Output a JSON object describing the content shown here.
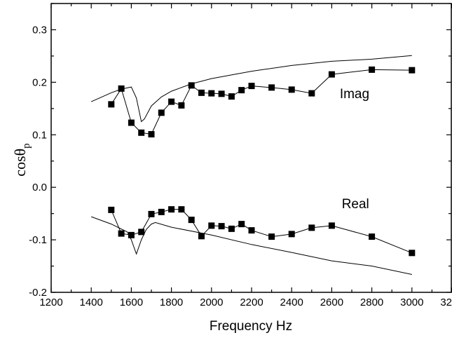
{
  "chart_data": {
    "type": "line",
    "title": "",
    "xlabel": "Frequency Hz",
    "ylabel": {
      "main": "cosθ",
      "sub": "p"
    },
    "xlim": [
      1200,
      3200
    ],
    "ylim": [
      -0.2,
      0.35
    ],
    "xticks": [
      1200,
      1400,
      1600,
      1800,
      2000,
      2200,
      2400,
      2600,
      2800,
      3000,
      3200
    ],
    "yticks": [
      -0.2,
      -0.1,
      0.0,
      0.1,
      0.2,
      0.3
    ],
    "ytick_labels": [
      "-0.2",
      "-0.1",
      "0.0",
      "0.1",
      "0.2",
      "0.3"
    ],
    "grid": false,
    "annotations": [
      {
        "text": "Imag",
        "x": 2640,
        "y": 0.17
      },
      {
        "text": "Real",
        "x": 2650,
        "y": -0.04
      }
    ],
    "series": [
      {
        "marker": "square",
        "x": [
          1500,
          1550,
          1600,
          1650,
          1700,
          1750,
          1800,
          1850,
          1900,
          1950,
          2000,
          2050,
          2100,
          2150,
          2200,
          2300,
          2400,
          2500,
          2600,
          2800,
          3000
        ],
        "y": [
          0.158,
          0.188,
          0.123,
          0.104,
          0.101,
          0.142,
          0.163,
          0.156,
          0.194,
          0.18,
          0.179,
          0.178,
          0.173,
          0.185,
          0.193,
          0.19,
          0.186,
          0.179,
          0.215,
          0.224,
          0.223
        ]
      },
      {
        "marker": "none",
        "x": [
          1400,
          1500,
          1550,
          1600,
          1625,
          1650,
          1665,
          1700,
          1750,
          1800,
          1900,
          2000,
          2200,
          2400,
          2600,
          2800,
          3000
        ],
        "y": [
          0.163,
          0.18,
          0.187,
          0.191,
          0.17,
          0.125,
          0.13,
          0.155,
          0.172,
          0.183,
          0.197,
          0.207,
          0.221,
          0.232,
          0.24,
          0.244,
          0.251
        ]
      },
      {
        "marker": "square",
        "x": [
          1500,
          1550,
          1600,
          1650,
          1700,
          1750,
          1800,
          1850,
          1900,
          1950,
          2000,
          2050,
          2100,
          2150,
          2200,
          2300,
          2400,
          2500,
          2600,
          2800,
          3000
        ],
        "y": [
          -0.043,
          -0.088,
          -0.091,
          -0.085,
          -0.051,
          -0.047,
          -0.042,
          -0.042,
          -0.062,
          -0.093,
          -0.073,
          -0.074,
          -0.079,
          -0.07,
          -0.082,
          -0.094,
          -0.089,
          -0.077,
          -0.073,
          -0.094,
          -0.125
        ]
      },
      {
        "marker": "none",
        "x": [
          1400,
          1500,
          1580,
          1600,
          1625,
          1650,
          1675,
          1700,
          1720,
          1800,
          2000,
          2200,
          2400,
          2600,
          2800,
          3000
        ],
        "y": [
          -0.056,
          -0.07,
          -0.085,
          -0.1,
          -0.127,
          -0.1,
          -0.08,
          -0.07,
          -0.067,
          -0.076,
          -0.091,
          -0.109,
          -0.124,
          -0.14,
          -0.15,
          -0.166
        ]
      }
    ]
  }
}
